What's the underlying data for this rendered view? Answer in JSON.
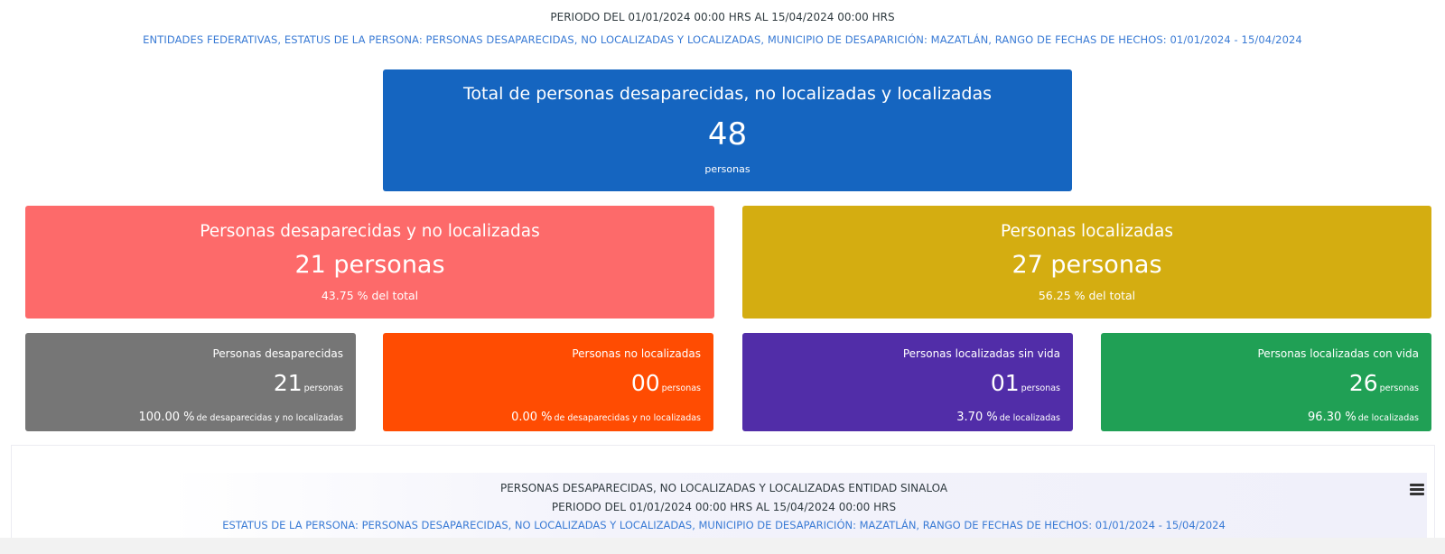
{
  "header": {
    "period": "PERIODO DEL 01/01/2024 00:00 HRS AL 15/04/2024 00:00 HRS",
    "filters": "ENTIDADES FEDERATIVAS, ESTATUS DE LA PERSONA: PERSONAS DESAPARECIDAS, NO LOCALIZADAS Y LOCALIZADAS, MUNICIPIO DE DESAPARICIÓN: MAZATLÁN, RANGO DE FECHAS DE HECHOS: 01/01/2024 - 15/04/2024"
  },
  "total": {
    "title": "Total de personas desaparecidas, no localizadas y localizadas",
    "value": "48",
    "unit": "personas",
    "color": "#1565c0"
  },
  "summary": {
    "missing": {
      "title": "Personas desaparecidas y no localizadas",
      "value": "21 personas",
      "pct": "43.75 % del total",
      "color": "#fd6a6a"
    },
    "located": {
      "title": "Personas localizadas",
      "value": "27 personas",
      "pct": "56.25 % del total",
      "color": "#d4ad11"
    }
  },
  "details": [
    {
      "title": "Personas desaparecidas",
      "value": "21",
      "unit": "personas",
      "pct": "100.00 %",
      "pct_label": "de desaparecidas y no localizadas",
      "color": "#767676"
    },
    {
      "title": "Personas no localizadas",
      "value": "00",
      "unit": "personas",
      "pct": "0.00 %",
      "pct_label": "de desaparecidas y no localizadas",
      "color": "#ff4c02"
    },
    {
      "title": "Personas localizadas sin vida",
      "value": "01",
      "unit": "personas",
      "pct": "3.70 %",
      "pct_label": "de localizadas",
      "color": "#512da8"
    },
    {
      "title": "Personas localizadas con vida",
      "value": "26",
      "unit": "personas",
      "pct": "96.30 %",
      "pct_label": "de localizadas",
      "color": "#20a055"
    }
  ],
  "chart_panel": {
    "title": "PERSONAS DESAPARECIDAS, NO LOCALIZADAS Y LOCALIZADAS ENTIDAD SINALOA",
    "period": "PERIODO DEL 01/01/2024 00:00 HRS AL 15/04/2024 00:00 HRS",
    "filters": "ESTATUS DE LA PERSONA: PERSONAS DESAPARECIDAS, NO LOCALIZADAS Y LOCALIZADAS, MUNICIPIO DE DESAPARICIÓN: MAZATLÁN, RANGO DE FECHAS DE HECHOS: 01/01/2024 - 15/04/2024",
    "menu_icon": "hamburger-menu-icon"
  }
}
